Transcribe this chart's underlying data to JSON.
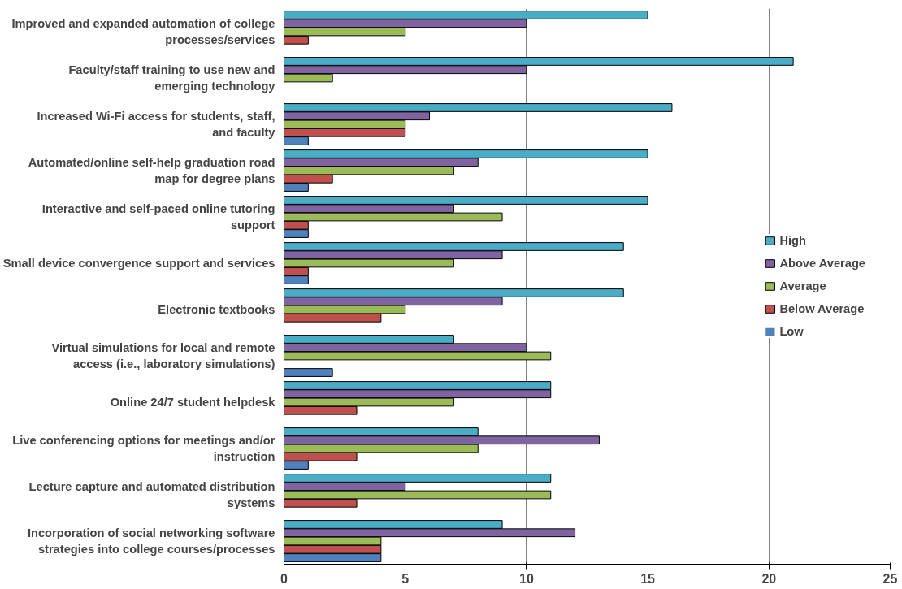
{
  "chart_data": {
    "type": "bar",
    "orientation": "horizontal",
    "categories": [
      "Improved and expanded automation of college processes/services",
      "Faculty/staff training to use new and emerging technology",
      "Increased Wi-Fi access for students, staff, and faculty",
      "Automated/online self-help graduation road map for degree plans",
      "Interactive and self-paced online tutoring support",
      "Small device convergence support and services",
      "Electronic textbooks",
      "Virtual simulations for local and remote access (i.e., laboratory simulations)",
      "Online 24/7 student helpdesk",
      "Live conferencing options for meetings and/or instruction",
      "Lecture capture and automated distribution systems",
      "Incorporation of social networking software strategies into college courses/processes"
    ],
    "series": [
      {
        "name": "High",
        "color": "#4bacc6",
        "values": [
          15,
          21,
          16,
          15,
          15,
          14,
          14,
          7,
          11,
          8,
          11,
          9
        ]
      },
      {
        "name": "Above Average",
        "color": "#8064a2",
        "values": [
          10,
          10,
          6,
          8,
          7,
          9,
          9,
          10,
          11,
          13,
          5,
          12
        ]
      },
      {
        "name": "Average",
        "color": "#9bbb59",
        "values": [
          5,
          2,
          5,
          7,
          9,
          7,
          5,
          11,
          7,
          8,
          11,
          4
        ]
      },
      {
        "name": "Below Average",
        "color": "#c0504d",
        "values": [
          1,
          0,
          5,
          2,
          1,
          1,
          4,
          0,
          3,
          3,
          3,
          4
        ]
      },
      {
        "name": "Low",
        "color": "#4f81bd",
        "values": [
          0,
          0,
          1,
          1,
          1,
          1,
          0,
          2,
          0,
          1,
          0,
          4
        ]
      }
    ],
    "xlim": [
      0,
      25
    ],
    "xticks": [
      0,
      5,
      10,
      15,
      20,
      25
    ],
    "grid": "x",
    "legend": "right"
  }
}
